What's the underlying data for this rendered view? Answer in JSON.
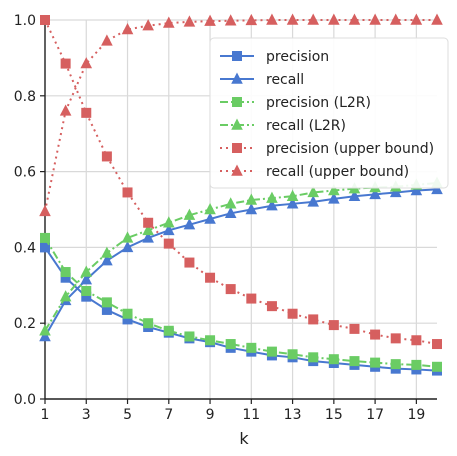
{
  "chart_data": {
    "type": "line",
    "title": "",
    "xlabel": "k",
    "ylabel": "",
    "xlim": [
      1,
      20
    ],
    "ylim": [
      0,
      1
    ],
    "x": [
      1,
      2,
      3,
      4,
      5,
      6,
      7,
      8,
      9,
      10,
      11,
      12,
      13,
      14,
      15,
      16,
      17,
      18,
      19,
      20
    ],
    "x_ticks": [
      "1",
      "3",
      "5",
      "7",
      "9",
      "11",
      "13",
      "15",
      "17",
      "19"
    ],
    "y_ticks": [
      "0.0",
      "0.2",
      "0.4",
      "0.6",
      "0.8",
      "1.0"
    ],
    "grid": true,
    "legend": "upper right",
    "series": [
      {
        "name": "precision",
        "color": "#4878d0",
        "marker": "square",
        "linestyle": "solid",
        "values": [
          0.4,
          0.32,
          0.27,
          0.235,
          0.21,
          0.19,
          0.175,
          0.16,
          0.15,
          0.135,
          0.125,
          0.115,
          0.11,
          0.1,
          0.095,
          0.09,
          0.085,
          0.08,
          0.078,
          0.075
        ]
      },
      {
        "name": "recall",
        "color": "#4878d0",
        "marker": "triangle",
        "linestyle": "solid",
        "values": [
          0.165,
          0.26,
          0.315,
          0.365,
          0.4,
          0.425,
          0.445,
          0.46,
          0.475,
          0.49,
          0.5,
          0.51,
          0.515,
          0.52,
          0.528,
          0.535,
          0.54,
          0.545,
          0.55,
          0.553
        ]
      },
      {
        "name": "precision (L2R)",
        "color": "#6acc64",
        "marker": "square",
        "linestyle": "dashdot",
        "values": [
          0.425,
          0.335,
          0.285,
          0.255,
          0.225,
          0.2,
          0.18,
          0.165,
          0.155,
          0.145,
          0.135,
          0.125,
          0.118,
          0.11,
          0.105,
          0.1,
          0.096,
          0.092,
          0.09,
          0.085
        ]
      },
      {
        "name": "recall (L2R)",
        "color": "#6acc64",
        "marker": "triangle",
        "linestyle": "dashdot",
        "values": [
          0.18,
          0.27,
          0.335,
          0.385,
          0.425,
          0.445,
          0.465,
          0.485,
          0.5,
          0.515,
          0.525,
          0.53,
          0.535,
          0.545,
          0.55,
          0.555,
          0.558,
          0.56,
          0.565,
          0.57
        ]
      },
      {
        "name": "precision (upper bound)",
        "color": "#d65f5f",
        "marker": "square",
        "linestyle": "dotted",
        "values": [
          1.0,
          0.885,
          0.755,
          0.64,
          0.545,
          0.465,
          0.41,
          0.36,
          0.32,
          0.29,
          0.265,
          0.245,
          0.225,
          0.21,
          0.195,
          0.185,
          0.17,
          0.16,
          0.155,
          0.145
        ]
      },
      {
        "name": "recall (upper bound)",
        "color": "#d65f5f",
        "marker": "triangle",
        "linestyle": "dotted",
        "values": [
          0.495,
          0.76,
          0.885,
          0.945,
          0.975,
          0.985,
          0.992,
          0.995,
          0.997,
          0.998,
          0.999,
          1.0,
          1.0,
          1.0,
          1.0,
          1.0,
          1.0,
          1.0,
          1.0,
          1.0
        ]
      }
    ]
  }
}
